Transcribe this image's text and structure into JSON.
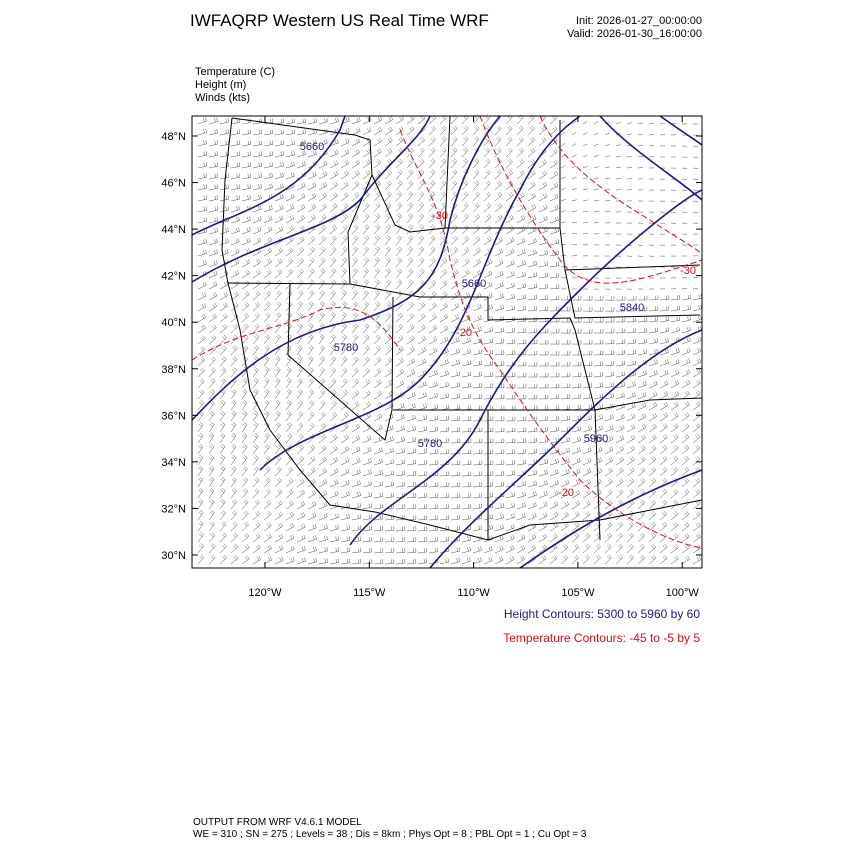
{
  "header": {
    "title": "IWFAQRP Western US Real Time WRF",
    "init": "Init: 2026-01-27_00:00:00",
    "valid": "Valid: 2026-01-30_16:00:00"
  },
  "fields": [
    "Temperature   (C)",
    "Height   (m)",
    "Winds   (kts)"
  ],
  "lat_labels": [
    "48°N",
    "46°N",
    "44°N",
    "42°N",
    "40°N",
    "38°N",
    "36°N",
    "34°N",
    "32°N",
    "30°N"
  ],
  "lon_labels": [
    "120°W",
    "115°W",
    "110°W",
    "105°W",
    "100°W"
  ],
  "height_labels": [
    "5660",
    "5660",
    "5840",
    "5780",
    "5780",
    "5960"
  ],
  "temp_labels": [
    "-30",
    "-20",
    "-20",
    "-30"
  ],
  "legend": {
    "height": "Height Contours: 5300 to 5960 by 60",
    "temperature": "Temperature Contours: -45 to -5 by 5"
  },
  "footer": {
    "line1": "OUTPUT FROM WRF V4.6.1 MODEL",
    "line2": "WE = 310 ; SN = 275 ; Levels = 38 ; Dis = 8km ; Phys Opt = 8 ; PBL Opt = 1 ; Cu Opt = 3"
  }
}
